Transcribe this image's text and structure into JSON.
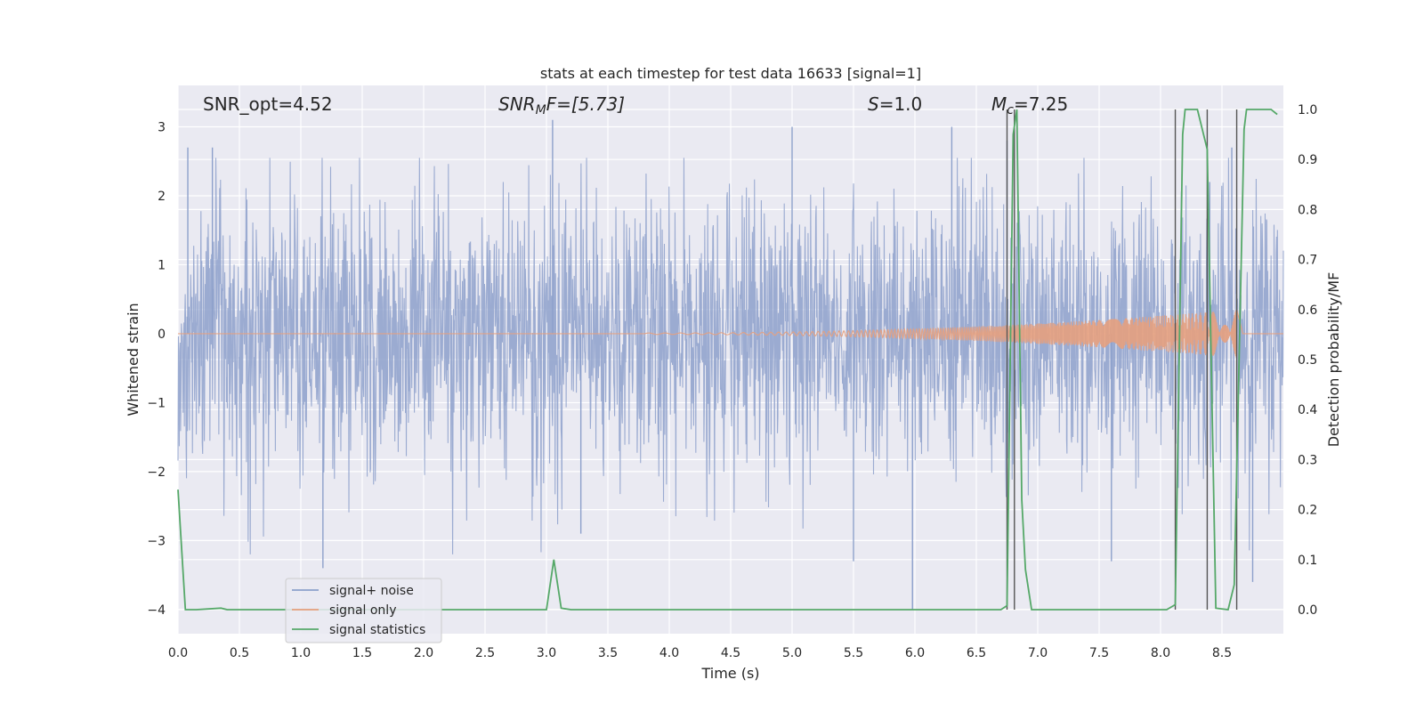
{
  "chart_data": {
    "type": "line",
    "title": "stats at each timestep for test data 16633 [signal=1]",
    "xlabel": "Time (s)",
    "ylabel": "Whitened strain",
    "ylabel_right": "Detection probability/MF",
    "xlim": [
      0,
      9
    ],
    "ylim": [
      -4.35,
      3.6
    ],
    "ylim_right": [
      -0.048,
      1.048
    ],
    "x_ticks": [
      "0.0",
      "0.5",
      "1.0",
      "1.5",
      "2.0",
      "2.5",
      "3.0",
      "3.5",
      "4.0",
      "4.5",
      "5.0",
      "5.5",
      "6.0",
      "6.5",
      "7.0",
      "7.5",
      "8.0",
      "8.5"
    ],
    "y_ticks": [
      "3",
      "2",
      "1",
      "0",
      "−1",
      "−2",
      "−3",
      "−4"
    ],
    "y_ticks_right": [
      "1.0",
      "0.9",
      "0.8",
      "0.7",
      "0.6",
      "0.5",
      "0.4",
      "0.3",
      "0.2",
      "0.1",
      "0.0"
    ],
    "grid": true,
    "legend_position": "lower-left",
    "annotations": {
      "snr_opt": "SNR_opt=4.52",
      "snr_mf_base": "SNR",
      "snr_mf_sub": "M",
      "snr_mf_rest": "F=[5.73]",
      "s_italic": "S",
      "s_rest": "=1.0",
      "mc_base": "M",
      "mc_sub": "c",
      "mc_rest": "=7.25"
    },
    "series": [
      {
        "name": "signal+ noise",
        "color": "#8da0cb",
        "noise_amplitude": 1.0,
        "peaks": [
          [
            0.08,
            2.7
          ],
          [
            0.28,
            2.7
          ],
          [
            1.18,
            -3.4
          ],
          [
            3.05,
            3.1
          ],
          [
            3.28,
            -2.9
          ],
          [
            5.0,
            3.0
          ],
          [
            5.5,
            -3.3
          ],
          [
            5.98,
            -4.0
          ],
          [
            6.3,
            3.0
          ],
          [
            6.75,
            2.8
          ],
          [
            7.6,
            -3.3
          ],
          [
            8.4,
            2.2
          ],
          [
            8.58,
            2.7
          ],
          [
            8.75,
            -3.6
          ]
        ]
      },
      {
        "name": "signal only",
        "color": "#e5a07e",
        "chirp": {
          "t_start": 3.8,
          "t_merge": 8.62,
          "f0": 30,
          "f1": 250,
          "a0": 0.01,
          "a1": 0.35
        }
      },
      {
        "name": "signal statistics",
        "color": "#55a868",
        "points": [
          [
            0.0,
            0.24
          ],
          [
            0.06,
            0.0
          ],
          [
            0.15,
            0.0
          ],
          [
            0.35,
            0.003
          ],
          [
            0.4,
            0.0
          ],
          [
            3.0,
            0.0
          ],
          [
            3.06,
            0.1
          ],
          [
            3.12,
            0.003
          ],
          [
            3.2,
            0.0
          ],
          [
            6.7,
            0.0
          ],
          [
            6.75,
            0.008
          ],
          [
            6.8,
            0.95
          ],
          [
            6.83,
            1.0
          ],
          [
            6.87,
            0.22
          ],
          [
            6.9,
            0.08
          ],
          [
            6.95,
            0.0
          ],
          [
            8.05,
            0.0
          ],
          [
            8.12,
            0.01
          ],
          [
            8.18,
            0.95
          ],
          [
            8.2,
            1.0
          ],
          [
            8.3,
            1.0
          ],
          [
            8.38,
            0.92
          ],
          [
            8.45,
            0.003
          ],
          [
            8.55,
            0.0
          ],
          [
            8.6,
            0.05
          ],
          [
            8.68,
            0.96
          ],
          [
            8.7,
            1.0
          ],
          [
            8.9,
            1.0
          ],
          [
            8.95,
            0.99
          ]
        ]
      }
    ],
    "vertical_markers": [
      6.75,
      6.81,
      8.12,
      8.38,
      8.62
    ]
  }
}
